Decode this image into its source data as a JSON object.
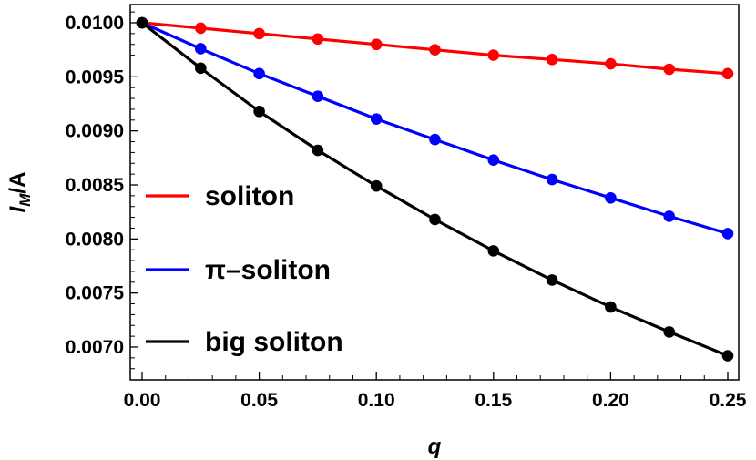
{
  "chart_data": {
    "type": "line",
    "xlabel": "q",
    "ylabel_main": "I",
    "ylabel_sub": "M",
    "ylabel_rest": "/A",
    "xlim": [
      0,
      0.25
    ],
    "ylim": [
      0.0068,
      0.0101
    ],
    "xticks": [
      0.0,
      0.05,
      0.1,
      0.15,
      0.2,
      0.25
    ],
    "xtick_labels": [
      "0.00",
      "0.05",
      "0.10",
      "0.15",
      "0.20",
      "0.25"
    ],
    "yticks": [
      0.007,
      0.0075,
      0.008,
      0.0085,
      0.009,
      0.0095,
      0.01
    ],
    "ytick_labels": [
      "0.0070",
      "0.0075",
      "0.0080",
      "0.0085",
      "0.0090",
      "0.0095",
      "0.0100"
    ],
    "grid": false,
    "legend_position": "left",
    "x": [
      0,
      0.025,
      0.05,
      0.075,
      0.1,
      0.125,
      0.15,
      0.175,
      0.2,
      0.225,
      0.25
    ],
    "series": [
      {
        "name": "soliton",
        "color": "#ff0000",
        "values": [
          0.01,
          0.00995,
          0.0099,
          0.00985,
          0.0098,
          0.00975,
          0.0097,
          0.00966,
          0.00962,
          0.00957,
          0.00953
        ]
      },
      {
        "name": "π–soliton",
        "color": "#0000ff",
        "values": [
          0.01,
          0.00976,
          0.00953,
          0.00932,
          0.00911,
          0.00892,
          0.00873,
          0.00855,
          0.00838,
          0.00821,
          0.00805
        ]
      },
      {
        "name": "big soliton",
        "color": "#000000",
        "values": [
          0.01,
          0.00958,
          0.00918,
          0.00882,
          0.00849,
          0.00818,
          0.00789,
          0.00762,
          0.00737,
          0.00714,
          0.00692
        ]
      }
    ]
  }
}
